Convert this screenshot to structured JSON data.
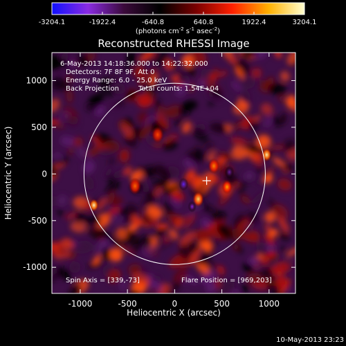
{
  "chart_data": {
    "type": "heatmap",
    "title": "Reconstructed RHESSI Image",
    "xlabel": "Heliocentric X (arcsec)",
    "ylabel": "Heliocentric Y (arcsec)",
    "xlim": [
      -1300,
      1280
    ],
    "ylim": [
      -1280,
      1300
    ],
    "xticks": [
      -1000,
      -500,
      0,
      500,
      1000
    ],
    "yticks": [
      -1000,
      -500,
      0,
      500,
      1000
    ],
    "colorbar": {
      "ticks": [
        "-3204.1",
        "-1922.4",
        "-640.8",
        "640.8",
        "1922.4",
        "3204.1"
      ],
      "range": [
        -3204.1,
        3204.1
      ],
      "unit_main": "(photons cm",
      "unit_exp1": "-2",
      "unit_mid": " s",
      "unit_exp2": "-1",
      "unit_end": " asec",
      "unit_exp3": "-2",
      "unit_close": ")",
      "colors": [
        "#1010ff",
        "#8a2be2",
        "#3a0a3a",
        "#000000",
        "#7a0000",
        "#ff2000",
        "#ffb000",
        "#ffffd0"
      ]
    },
    "annotations": {
      "time_range": "6-May-2013 14:18:36.000 to 14:22:32.000",
      "detectors": "Detectors: 7F 8F 9F, Att 0",
      "energy": "Energy Range: 6.0 - 25.0 keV",
      "method": "Back Projection",
      "counts": "Total counts: 1.54E+04",
      "spin_axis": "Spin Axis = [339,-73]",
      "flare_position": "Flare Position = [969,203]"
    },
    "limb_circle": {
      "center": [
        0,
        0
      ],
      "radius": 960
    },
    "marker": {
      "x": 339,
      "y": -73
    },
    "sources": [
      {
        "x": -855,
        "y": -335,
        "level": 3100,
        "size": 45
      },
      {
        "x": 975,
        "y": 205,
        "level": 3000,
        "size": 48
      },
      {
        "x": 250,
        "y": -270,
        "level": 2700,
        "size": 55
      },
      {
        "x": 555,
        "y": -140,
        "level": 2200,
        "size": 50
      },
      {
        "x": 415,
        "y": 85,
        "level": 2000,
        "size": 55
      },
      {
        "x": -420,
        "y": -130,
        "level": 1800,
        "size": 60
      },
      {
        "x": -180,
        "y": 420,
        "level": 1600,
        "size": 60
      },
      {
        "x": 95,
        "y": -110,
        "level": -2600,
        "size": 45
      },
      {
        "x": 185,
        "y": -350,
        "level": -2200,
        "size": 40
      },
      {
        "x": 580,
        "y": 20,
        "level": -1900,
        "size": 45
      }
    ]
  },
  "footer": {
    "timestamp": "10-May-2013 23:23"
  }
}
